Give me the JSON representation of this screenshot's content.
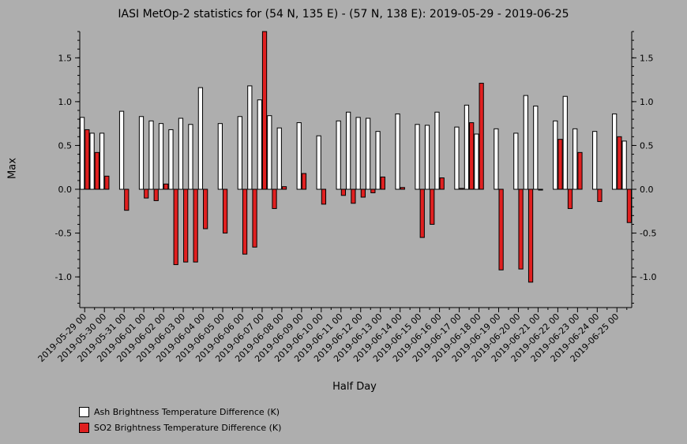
{
  "chart_data": {
    "type": "bar",
    "title": "IASI MetOp-2 statistics for (54 N, 135 E) - (57 N, 138 E): 2019-05-29 - 2019-06-25",
    "xlabel": "Half Day",
    "ylabel": "Max",
    "ylim": [
      -1.35,
      1.8
    ],
    "yticks": [
      -1.0,
      -0.5,
      0.0,
      0.5,
      1.0,
      1.5
    ],
    "ytick_labels": [
      "-1.0",
      "-0.5",
      "0.0",
      "0.5",
      "1.0",
      "1.5"
    ],
    "grid": false,
    "legend_position": "bottom-left",
    "categories": [
      "2019-05-29 00",
      "2019-05-29 12",
      "2019-05-30 00",
      "2019-05-30 12",
      "2019-05-31 00",
      "2019-05-31 12",
      "2019-06-01 00",
      "2019-06-01 12",
      "2019-06-02 00",
      "2019-06-02 12",
      "2019-06-03 00",
      "2019-06-03 12",
      "2019-06-04 00",
      "2019-06-04 12",
      "2019-06-05 00",
      "2019-06-05 12",
      "2019-06-06 00",
      "2019-06-06 12",
      "2019-06-07 00",
      "2019-06-07 12",
      "2019-06-08 00",
      "2019-06-08 12",
      "2019-06-09 00",
      "2019-06-09 12",
      "2019-06-10 00",
      "2019-06-10 12",
      "2019-06-11 00",
      "2019-06-11 12",
      "2019-06-12 00",
      "2019-06-12 12",
      "2019-06-13 00",
      "2019-06-13 12",
      "2019-06-14 00",
      "2019-06-14 12",
      "2019-06-15 00",
      "2019-06-15 12",
      "2019-06-16 00",
      "2019-06-16 12",
      "2019-06-17 00",
      "2019-06-17 12",
      "2019-06-18 00",
      "2019-06-18 12",
      "2019-06-19 00",
      "2019-06-19 12",
      "2019-06-20 00",
      "2019-06-20 12",
      "2019-06-21 00",
      "2019-06-21 12",
      "2019-06-22 00",
      "2019-06-22 12",
      "2019-06-23 00",
      "2019-06-23 12",
      "2019-06-24 00",
      "2019-06-24 12",
      "2019-06-25 00",
      "2019-06-25 12"
    ],
    "xtick_labels": [
      "2019-05-29 00",
      "2019-05-30 00",
      "2019-05-31 00",
      "2019-06-01 00",
      "2019-06-02 00",
      "2019-06-03 00",
      "2019-06-04 00",
      "2019-06-05 00",
      "2019-06-06 00",
      "2019-06-07 00",
      "2019-06-08 00",
      "2019-06-09 00",
      "2019-06-10 00",
      "2019-06-11 00",
      "2019-06-12 00",
      "2019-06-13 00",
      "2019-06-14 00",
      "2019-06-15 00",
      "2019-06-16 00",
      "2019-06-17 00",
      "2019-06-18 00",
      "2019-06-19 00",
      "2019-06-20 00",
      "2019-06-21 00",
      "2019-06-22 00",
      "2019-06-23 00",
      "2019-06-24 00",
      "2019-06-25 00"
    ],
    "series": [
      {
        "name": "Ash Brightness Temperature Difference (K)",
        "color": "#ffffff",
        "values": [
          0.82,
          0.64,
          0.64,
          null,
          0.89,
          null,
          0.83,
          0.78,
          0.75,
          0.68,
          0.81,
          0.74,
          1.16,
          null,
          0.75,
          null,
          0.83,
          1.18,
          1.02,
          0.84,
          0.7,
          null,
          0.76,
          null,
          0.61,
          null,
          0.78,
          0.88,
          0.82,
          0.81,
          0.66,
          null,
          0.86,
          null,
          0.74,
          0.73,
          0.88,
          null,
          0.71,
          0.96,
          0.63,
          null,
          0.69,
          null,
          0.64,
          1.07,
          0.95,
          null,
          0.78,
          1.06,
          0.69,
          null,
          0.66,
          null,
          0.86,
          0.55
        ]
      },
      {
        "name": "SO2 Brightness Temperature Difference (K)",
        "color": "#e02020",
        "values": [
          0.68,
          0.42,
          0.15,
          null,
          -0.24,
          null,
          -0.1,
          -0.13,
          0.06,
          -0.86,
          -0.83,
          -0.83,
          -0.45,
          null,
          -0.5,
          null,
          -0.74,
          -0.66,
          1.8,
          -0.22,
          0.03,
          null,
          0.18,
          null,
          -0.17,
          null,
          -0.07,
          -0.16,
          -0.09,
          -0.04,
          0.14,
          null,
          0.02,
          null,
          -0.55,
          -0.4,
          0.13,
          null,
          0.01,
          0.76,
          1.21,
          null,
          -0.92,
          null,
          -0.91,
          -1.06,
          0.0,
          null,
          0.57,
          -0.22,
          0.42,
          null,
          -0.14,
          null,
          0.6,
          -0.38
        ]
      }
    ]
  }
}
